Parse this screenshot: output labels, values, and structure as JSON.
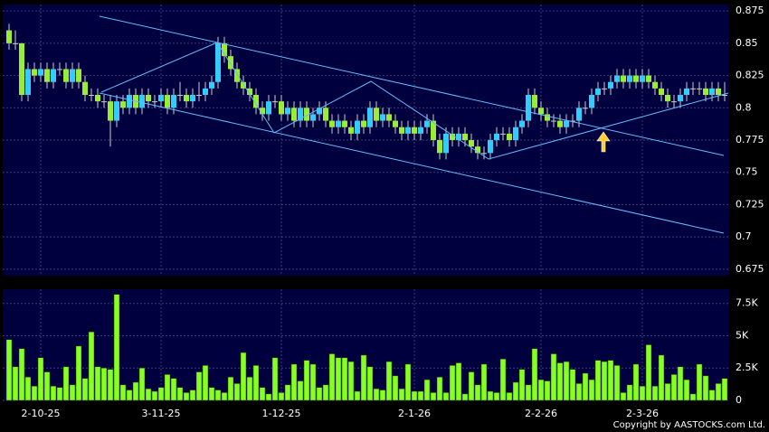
{
  "chart_data": [
    {
      "type": "candlestick",
      "categories": [
        null,
        null,
        null,
        null,
        null,
        "2-10-25",
        null,
        null,
        null,
        null,
        null,
        null,
        null,
        null,
        null,
        null,
        null,
        null,
        null,
        null,
        null,
        null,
        null,
        null,
        "3-11-25",
        null,
        null,
        null,
        null,
        null,
        null,
        null,
        null,
        null,
        null,
        null,
        null,
        null,
        null,
        null,
        null,
        null,
        null,
        "1-12-25",
        null,
        null,
        null,
        null,
        null,
        null,
        null,
        null,
        null,
        null,
        null,
        null,
        null,
        null,
        null,
        null,
        null,
        null,
        null,
        null,
        "2-1-26",
        null,
        null,
        null,
        null,
        null,
        null,
        null,
        null,
        null,
        null,
        null,
        null,
        null,
        null,
        null,
        null,
        null,
        null,
        null,
        "2-2-26",
        null,
        null,
        null,
        null,
        null,
        null,
        null,
        null,
        null,
        null,
        null,
        null,
        null,
        null,
        null,
        "2-3-26",
        null,
        null,
        null,
        null,
        null,
        null,
        null,
        null,
        null,
        null,
        null,
        null,
        null
      ],
      "open": [
        0.86,
        0.85,
        0.85,
        0.81,
        0.83,
        0.825,
        0.83,
        0.82,
        0.83,
        0.83,
        0.82,
        0.83,
        0.82,
        0.81,
        0.81,
        0.805,
        0.805,
        0.79,
        0.805,
        0.8,
        0.81,
        0.8,
        0.81,
        0.805,
        0.805,
        0.81,
        0.8,
        0.81,
        0.81,
        0.805,
        0.81,
        0.81,
        0.815,
        0.82,
        0.85,
        0.84,
        0.83,
        0.82,
        0.815,
        0.81,
        0.8,
        0.795,
        0.805,
        0.805,
        0.795,
        0.8,
        0.79,
        0.8,
        0.79,
        0.795,
        0.8,
        0.79,
        0.785,
        0.79,
        0.785,
        0.78,
        0.79,
        0.785,
        0.8,
        0.79,
        0.795,
        0.79,
        0.785,
        0.78,
        0.785,
        0.78,
        0.785,
        0.79,
        0.775,
        0.765,
        0.78,
        0.775,
        0.78,
        0.775,
        0.77,
        0.765,
        0.765,
        0.775,
        0.78,
        0.78,
        0.775,
        0.785,
        0.79,
        0.81,
        0.8,
        0.795,
        0.79,
        0.79,
        0.785,
        0.79,
        0.79,
        0.8,
        0.8,
        0.81,
        0.815,
        0.815,
        0.82,
        0.825,
        0.82,
        0.825,
        0.82,
        0.825,
        0.82,
        0.815,
        0.81,
        0.805,
        0.805,
        0.81,
        0.815,
        0.815,
        0.815,
        0.81,
        0.815,
        0.81
      ],
      "high": [
        0.865,
        0.86,
        0.85,
        0.835,
        0.835,
        0.835,
        0.835,
        0.835,
        0.835,
        0.835,
        0.835,
        0.835,
        0.825,
        0.815,
        0.815,
        0.81,
        0.81,
        0.81,
        0.81,
        0.815,
        0.815,
        0.815,
        0.815,
        0.81,
        0.815,
        0.815,
        0.815,
        0.82,
        0.815,
        0.815,
        0.82,
        0.82,
        0.825,
        0.855,
        0.855,
        0.845,
        0.835,
        0.825,
        0.82,
        0.815,
        0.805,
        0.81,
        0.81,
        0.81,
        0.805,
        0.805,
        0.805,
        0.805,
        0.8,
        0.805,
        0.805,
        0.795,
        0.795,
        0.795,
        0.79,
        0.795,
        0.795,
        0.805,
        0.805,
        0.8,
        0.8,
        0.795,
        0.79,
        0.79,
        0.79,
        0.79,
        0.795,
        0.795,
        0.78,
        0.785,
        0.785,
        0.785,
        0.785,
        0.78,
        0.775,
        0.77,
        0.78,
        0.785,
        0.785,
        0.785,
        0.79,
        0.795,
        0.815,
        0.815,
        0.805,
        0.8,
        0.795,
        0.795,
        0.795,
        0.795,
        0.805,
        0.805,
        0.815,
        0.82,
        0.82,
        0.825,
        0.83,
        0.83,
        0.83,
        0.83,
        0.83,
        0.83,
        0.825,
        0.82,
        0.815,
        0.81,
        0.815,
        0.82,
        0.82,
        0.82,
        0.82,
        0.82,
        0.82,
        0.82
      ],
      "low": [
        0.845,
        0.845,
        0.805,
        0.805,
        0.82,
        0.82,
        0.815,
        0.815,
        0.825,
        0.815,
        0.815,
        0.815,
        0.805,
        0.805,
        0.8,
        0.8,
        0.77,
        0.785,
        0.795,
        0.795,
        0.795,
        0.795,
        0.8,
        0.8,
        0.8,
        0.795,
        0.795,
        0.805,
        0.8,
        0.8,
        0.805,
        0.805,
        0.81,
        0.815,
        0.835,
        0.825,
        0.815,
        0.81,
        0.805,
        0.795,
        0.79,
        0.79,
        0.8,
        0.79,
        0.79,
        0.785,
        0.785,
        0.785,
        0.785,
        0.79,
        0.785,
        0.78,
        0.78,
        0.78,
        0.775,
        0.775,
        0.78,
        0.78,
        0.785,
        0.785,
        0.785,
        0.78,
        0.775,
        0.775,
        0.775,
        0.775,
        0.78,
        0.77,
        0.76,
        0.76,
        0.77,
        0.77,
        0.77,
        0.765,
        0.76,
        0.76,
        0.76,
        0.77,
        0.775,
        0.77,
        0.77,
        0.78,
        0.785,
        0.795,
        0.79,
        0.785,
        0.785,
        0.78,
        0.78,
        0.785,
        0.785,
        0.795,
        0.795,
        0.805,
        0.81,
        0.81,
        0.815,
        0.815,
        0.815,
        0.815,
        0.815,
        0.815,
        0.81,
        0.805,
        0.8,
        0.8,
        0.8,
        0.805,
        0.81,
        0.81,
        0.805,
        0.805,
        0.805,
        0.805
      ],
      "close": [
        0.85,
        0.85,
        0.81,
        0.83,
        0.825,
        0.83,
        0.82,
        0.83,
        0.83,
        0.82,
        0.83,
        0.82,
        0.81,
        0.81,
        0.805,
        0.805,
        0.79,
        0.805,
        0.8,
        0.81,
        0.8,
        0.81,
        0.805,
        0.805,
        0.81,
        0.8,
        0.81,
        0.81,
        0.805,
        0.81,
        0.81,
        0.815,
        0.82,
        0.85,
        0.84,
        0.83,
        0.82,
        0.815,
        0.81,
        0.8,
        0.795,
        0.805,
        0.805,
        0.795,
        0.8,
        0.79,
        0.8,
        0.79,
        0.795,
        0.8,
        0.79,
        0.785,
        0.79,
        0.785,
        0.78,
        0.79,
        0.785,
        0.8,
        0.79,
        0.795,
        0.79,
        0.785,
        0.78,
        0.785,
        0.78,
        0.785,
        0.79,
        0.775,
        0.765,
        0.78,
        0.775,
        0.78,
        0.775,
        0.77,
        0.765,
        0.765,
        0.775,
        0.78,
        0.78,
        0.775,
        0.785,
        0.79,
        0.81,
        0.8,
        0.795,
        0.79,
        0.79,
        0.785,
        0.79,
        0.79,
        0.8,
        0.8,
        0.81,
        0.815,
        0.815,
        0.82,
        0.825,
        0.82,
        0.825,
        0.82,
        0.825,
        0.82,
        0.815,
        0.81,
        0.805,
        0.805,
        0.81,
        0.815,
        0.815,
        0.815,
        0.81,
        0.815,
        0.81,
        0.81
      ],
      "up_color": "#33ccff",
      "down_color": "#99ee33",
      "ylim": [
        0.67,
        0.88
      ],
      "yticks": [
        0.675,
        0.7,
        0.725,
        0.75,
        0.775,
        0.8,
        0.825,
        0.85,
        0.875
      ],
      "grid": true
    },
    {
      "type": "bar",
      "values": [
        4700,
        2600,
        4000,
        1800,
        1100,
        3300,
        2200,
        1100,
        1000,
        2600,
        1200,
        4200,
        1700,
        5300,
        2600,
        2500,
        2400,
        8200,
        1200,
        800,
        1400,
        2500,
        900,
        700,
        1000,
        2000,
        1700,
        1000,
        600,
        800,
        2200,
        2700,
        1000,
        800,
        600,
        1800,
        1300,
        3700,
        1800,
        2700,
        1000,
        500,
        3300,
        600,
        1200,
        2800,
        1500,
        3100,
        2800,
        1000,
        1200,
        3600,
        3300,
        3300,
        3000,
        700,
        3500,
        2600,
        900,
        800,
        3000,
        1900,
        900,
        2800,
        700,
        700,
        1600,
        600,
        1800,
        600,
        2700,
        2900,
        500,
        2200,
        1200,
        2800,
        700,
        600,
        3200,
        600,
        1400,
        2400,
        1200,
        4000,
        1600,
        1500,
        3600,
        2900,
        3000,
        2400,
        1300,
        2100,
        1600,
        3100,
        3000,
        3100,
        2700,
        600,
        1200,
        2800,
        1100,
        4300,
        1100,
        3500,
        1300,
        2000,
        2600,
        1600,
        500,
        2800,
        1900,
        800,
        1300,
        1700
      ],
      "color": "#88ff22",
      "ylim": [
        0,
        8600
      ],
      "yticks": [
        0,
        {
          "value": 2500,
          "label": "2.5K"
        },
        {
          "value": 5000,
          "label": "5K"
        },
        {
          "value": 7500,
          "label": "7.5K"
        }
      ],
      "grid": true,
      "copyright": "Copyright by AASTOCKS.com Ltd."
    }
  ]
}
